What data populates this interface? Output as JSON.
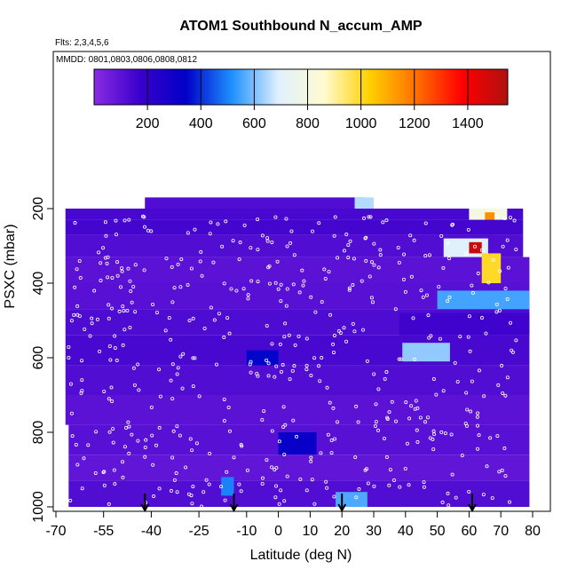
{
  "chart_data": {
    "type": "heatmap",
    "title": "ATOM1 Southbound N_accum_AMP",
    "subtitle_flights": "Flts: 2,3,4,5,6",
    "subtitle_dates": "MMDD: 0801,0803,0806,0808,0812",
    "xlabel": "Latitude (deg N)",
    "ylabel": "PSXC (mbar)",
    "xlim": [
      -70,
      80
    ],
    "ylim": [
      1000,
      200
    ],
    "x_ticks": [
      -70,
      -55,
      -40,
      -25,
      -10,
      0,
      10,
      20,
      30,
      40,
      50,
      60,
      70,
      80
    ],
    "x_tick_labels": [
      "-70",
      "-55",
      "-40",
      "-25",
      "-10",
      "0",
      "10",
      "20",
      "30",
      "40",
      "50",
      "60",
      "70",
      "80"
    ],
    "y_ticks": [
      200,
      400,
      600,
      800,
      1000
    ],
    "y_tick_labels": [
      "200",
      "400",
      "600",
      "800",
      "1000"
    ],
    "colorbar": {
      "min": 0,
      "max": 1550,
      "ticks": [
        200,
        400,
        600,
        800,
        1000,
        1200,
        1400
      ],
      "tick_labels": [
        "200",
        "400",
        "600",
        "800",
        "1000",
        "1200",
        "1400"
      ],
      "colors": [
        "#8a2be2",
        "#3a00cc",
        "#0000c8",
        "#1e90ff",
        "#dff0ff",
        "#fffbd0",
        "#ffd000",
        "#ff7000",
        "#ff0000",
        "#b01010"
      ],
      "position": "top"
    },
    "grid": false,
    "field_description_note": "",
    "cells": [
      {
        "lat_min": -42,
        "lat_max": 27,
        "p_min": 170,
        "p_max": 200,
        "value": 120
      },
      {
        "lat_min": 24,
        "lat_max": 30,
        "p_min": 170,
        "p_max": 260,
        "value": 650
      },
      {
        "lat_min": -67,
        "lat_max": 77,
        "p_min": 200,
        "p_max": 230,
        "value": 140
      },
      {
        "lat_min": 60,
        "lat_max": 72,
        "p_min": 200,
        "p_max": 290,
        "value": 800
      },
      {
        "lat_min": 65,
        "lat_max": 68,
        "p_min": 210,
        "p_max": 330,
        "value": 1150
      },
      {
        "lat_min": -67,
        "lat_max": 77,
        "p_min": 230,
        "p_max": 270,
        "value": 150
      },
      {
        "lat_min": -67,
        "lat_max": 77,
        "p_min": 270,
        "p_max": 330,
        "value": 120
      },
      {
        "lat_min": 52,
        "lat_max": 66,
        "p_min": 280,
        "p_max": 330,
        "value": 700
      },
      {
        "lat_min": 60,
        "lat_max": 64,
        "p_min": 290,
        "p_max": 320,
        "value": 1500
      },
      {
        "lat_min": -67,
        "lat_max": 79,
        "p_min": 330,
        "p_max": 400,
        "value": 100
      },
      {
        "lat_min": 64,
        "lat_max": 70,
        "p_min": 320,
        "p_max": 400,
        "value": 1000
      },
      {
        "lat_min": -67,
        "lat_max": 79,
        "p_min": 400,
        "p_max": 470,
        "value": 110
      },
      {
        "lat_min": 50,
        "lat_max": 79,
        "p_min": 420,
        "p_max": 470,
        "value": 550
      },
      {
        "lat_min": -67,
        "lat_max": 79,
        "p_min": 470,
        "p_max": 540,
        "value": 130
      },
      {
        "lat_min": 38,
        "lat_max": 79,
        "p_min": 480,
        "p_max": 540,
        "value": 160
      },
      {
        "lat_min": -67,
        "lat_max": 79,
        "p_min": 540,
        "p_max": 620,
        "value": 140
      },
      {
        "lat_min": 39,
        "lat_max": 54,
        "p_min": 560,
        "p_max": 610,
        "value": 620
      },
      {
        "lat_min": -10,
        "lat_max": 0,
        "p_min": 580,
        "p_max": 640,
        "value": 350
      },
      {
        "lat_min": -67,
        "lat_max": 79,
        "p_min": 620,
        "p_max": 700,
        "value": 120
      },
      {
        "lat_min": -67,
        "lat_max": 79,
        "p_min": 700,
        "p_max": 780,
        "value": 100
      },
      {
        "lat_min": -66,
        "lat_max": 79,
        "p_min": 780,
        "p_max": 860,
        "value": 110
      },
      {
        "lat_min": 0,
        "lat_max": 12,
        "p_min": 800,
        "p_max": 860,
        "value": 320
      },
      {
        "lat_min": -66,
        "lat_max": 79,
        "p_min": 860,
        "p_max": 930,
        "value": 90
      },
      {
        "lat_min": -66,
        "lat_max": 79,
        "p_min": 930,
        "p_max": 1000,
        "value": 120
      },
      {
        "lat_min": -18,
        "lat_max": -14,
        "p_min": 920,
        "p_max": 970,
        "value": 500
      },
      {
        "lat_min": 18,
        "lat_max": 28,
        "p_min": 960,
        "p_max": 1000,
        "value": 560
      }
    ],
    "arrows_lat": [
      -42,
      -14,
      20,
      61
    ],
    "sample_points_note": ""
  }
}
